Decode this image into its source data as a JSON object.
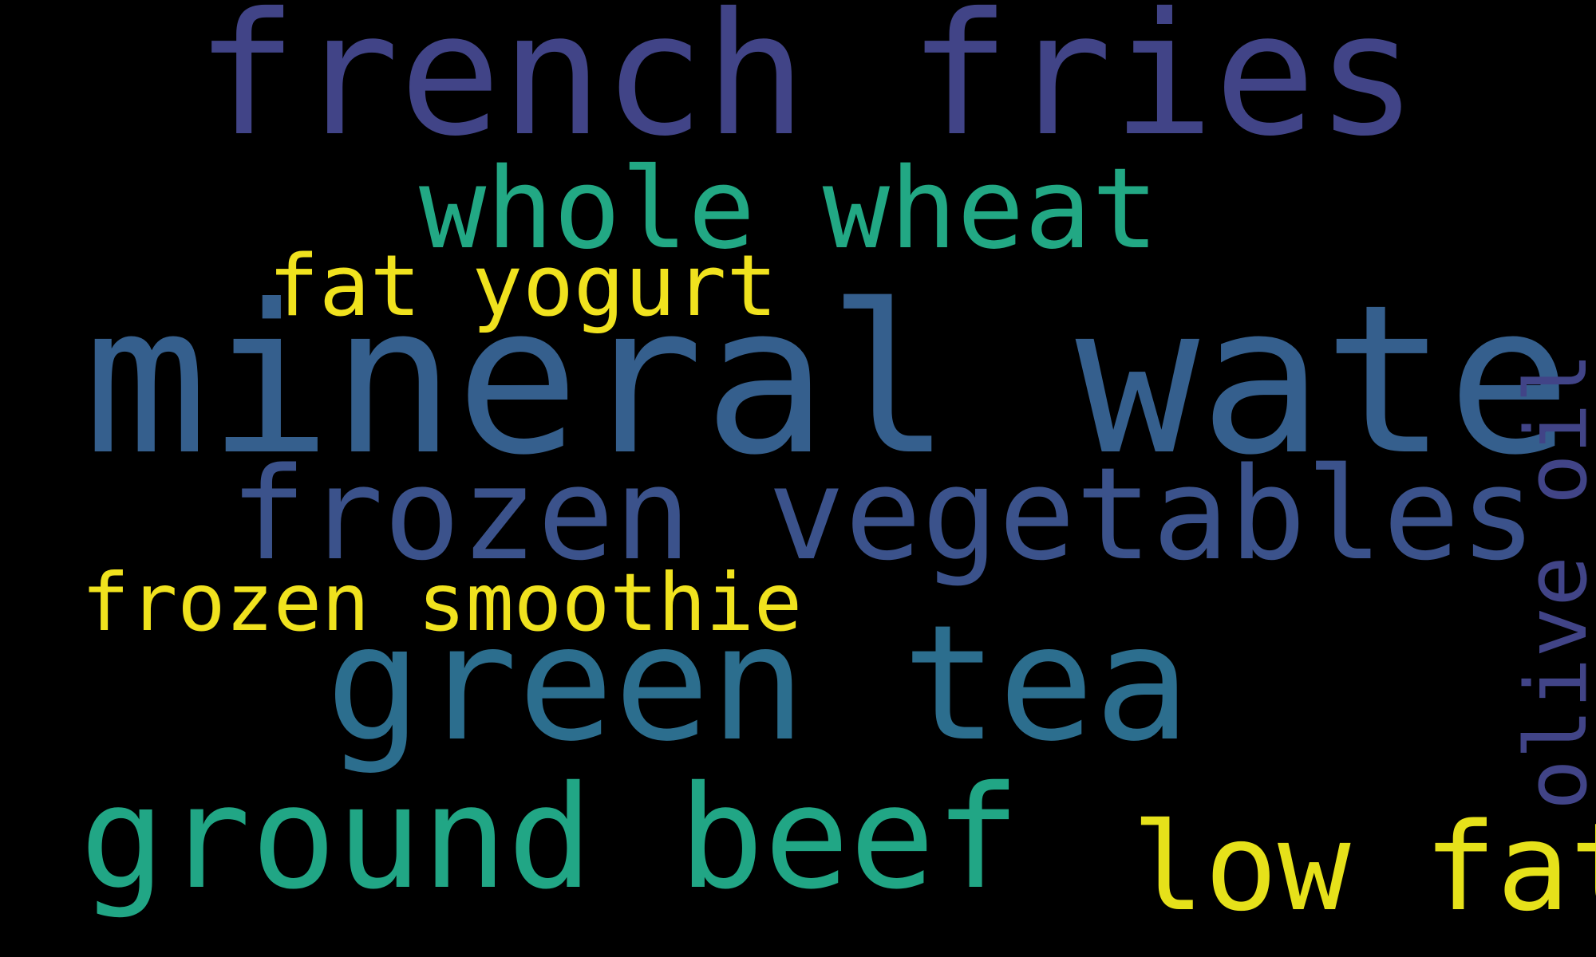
{
  "background_color": "#000000",
  "words": {
    "french_fries": {
      "text": "french fries",
      "color": "#414487"
    },
    "whole_wheat": {
      "text": "whole wheat",
      "color": "#22a884"
    },
    "fat_yogurt": {
      "text": "fat yogurt",
      "color": "#f0e21e"
    },
    "mineral_water": {
      "text": "mineral water",
      "color": "#355f8d"
    },
    "frozen_vegetables": {
      "text": "frozen vegetables",
      "color": "#3b528b"
    },
    "frozen_smoothie": {
      "text": "frozen smoothie",
      "color": "#f0e21e"
    },
    "green_tea": {
      "text": "green tea",
      "color": "#2c6e8e"
    },
    "ground_beef": {
      "text": "ground beef",
      "color": "#21a685"
    },
    "low_fat": {
      "text": "low fat",
      "color": "#e6e11a"
    },
    "olive_oil": {
      "text": "olive oil",
      "color": "#414487"
    }
  }
}
